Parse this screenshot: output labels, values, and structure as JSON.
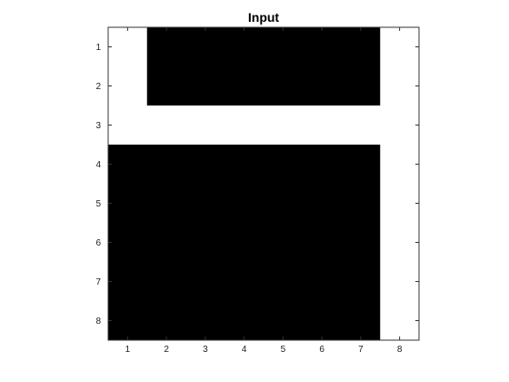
{
  "chart_data": {
    "type": "heatmap",
    "title": "Input",
    "xlabel": "",
    "ylabel": "",
    "x_ticks": [
      1,
      2,
      3,
      4,
      5,
      6,
      7,
      8
    ],
    "y_ticks": [
      1,
      2,
      3,
      4,
      5,
      6,
      7,
      8
    ],
    "xlim": [
      0.5,
      8.5
    ],
    "ylim": [
      0.5,
      8.5
    ],
    "y_direction": "reverse",
    "grid": false,
    "colors": {
      "0": "#ffffff",
      "1": "#000000"
    },
    "matrix": [
      [
        0,
        1,
        1,
        1,
        1,
        1,
        1,
        0
      ],
      [
        0,
        1,
        1,
        1,
        1,
        1,
        1,
        0
      ],
      [
        0,
        0,
        0,
        0,
        0,
        0,
        0,
        0
      ],
      [
        1,
        1,
        1,
        1,
        1,
        1,
        1,
        0
      ],
      [
        1,
        1,
        1,
        1,
        1,
        1,
        1,
        0
      ],
      [
        1,
        1,
        1,
        1,
        1,
        1,
        1,
        0
      ],
      [
        1,
        1,
        1,
        1,
        1,
        1,
        1,
        0
      ],
      [
        1,
        1,
        1,
        1,
        1,
        1,
        1,
        0
      ]
    ]
  }
}
